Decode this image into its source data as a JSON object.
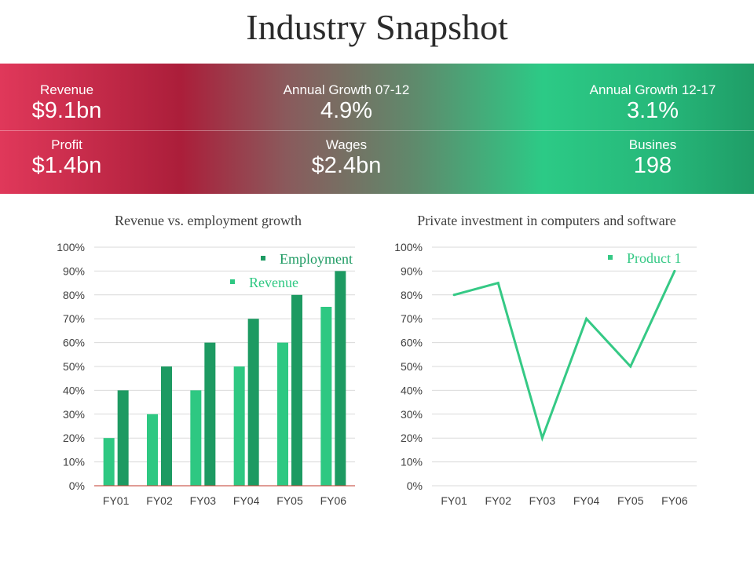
{
  "page": {
    "title": "Industry Snapshot"
  },
  "stats": [
    {
      "label": "Revenue",
      "value": "$9.1bn"
    },
    {
      "label": "Annual Growth 07-12",
      "value": "4.9%"
    },
    {
      "label": "Annual Growth 12-17",
      "value": "3.1%"
    },
    {
      "label": "Profit",
      "value": "$1.4bn"
    },
    {
      "label": "Wages",
      "value": "$2.4bn"
    },
    {
      "label": "Busines",
      "value": "198"
    }
  ],
  "colors": {
    "revenue": "#2ec882",
    "employment": "#1d9a62",
    "product": "#35c985",
    "grid": "#d9d9d9",
    "axis_baseline": "#c0392b"
  },
  "chart_data": [
    {
      "type": "bar",
      "title": "Revenue vs. employment growth",
      "categories": [
        "FY01",
        "FY02",
        "FY03",
        "FY04",
        "FY05",
        "FY06"
      ],
      "series": [
        {
          "name": "Revenue",
          "values": [
            20,
            30,
            40,
            50,
            60,
            75
          ]
        },
        {
          "name": "Employment",
          "values": [
            40,
            50,
            60,
            70,
            80,
            90
          ]
        }
      ],
      "yticks": [
        "0%",
        "10%",
        "20%",
        "30%",
        "40%",
        "50%",
        "60%",
        "70%",
        "80%",
        "90%",
        "100%"
      ],
      "ylim": [
        0,
        100
      ],
      "grid": true,
      "legend": "top-right"
    },
    {
      "type": "line",
      "title": "Private investment in computers and software",
      "categories": [
        "FY01",
        "FY02",
        "FY03",
        "FY04",
        "FY05",
        "FY06"
      ],
      "series": [
        {
          "name": "Product 1",
          "values": [
            80,
            85,
            20,
            70,
            50,
            90
          ]
        }
      ],
      "yticks": [
        "0%",
        "10%",
        "20%",
        "30%",
        "40%",
        "50%",
        "60%",
        "70%",
        "80%",
        "90%",
        "100%"
      ],
      "ylim": [
        0,
        100
      ],
      "grid": true,
      "legend": "top-right"
    }
  ]
}
